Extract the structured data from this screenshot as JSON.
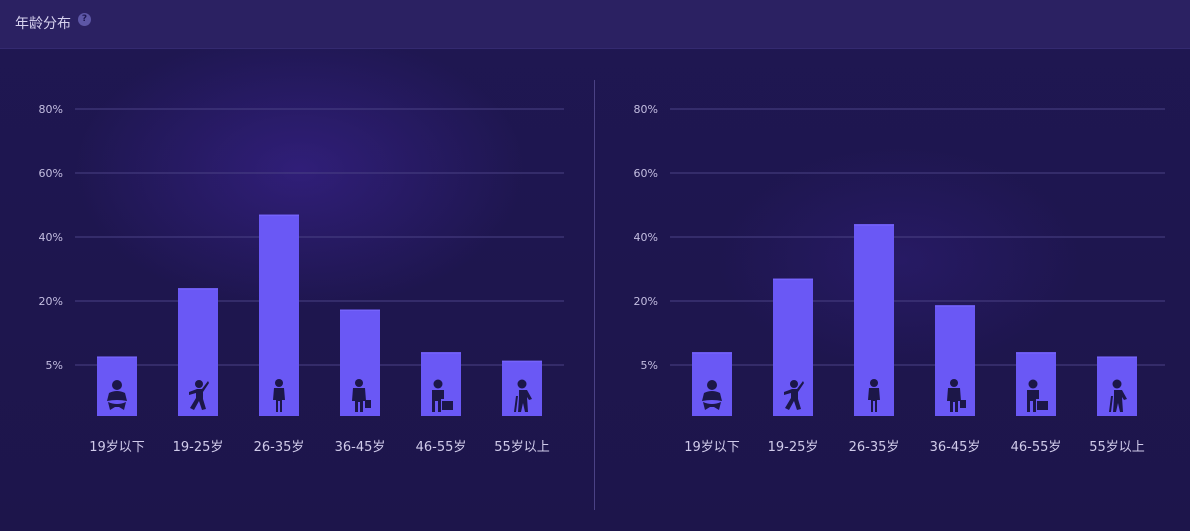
{
  "header": {
    "title": "年龄分布",
    "help_icon": "question-icon"
  },
  "colors": {
    "bar": "#6a58f5",
    "grid": "#4a4185",
    "background": "#1e1650"
  },
  "chart_data": [
    {
      "type": "bar",
      "categories": [
        "19岁以下",
        "19-25岁",
        "26-35岁",
        "36-45岁",
        "46-55岁",
        "55岁以上"
      ],
      "icons": [
        "baby-icon",
        "child-icon",
        "young-adult-icon",
        "businessman-icon",
        "middle-aged-icon",
        "elderly-icon"
      ],
      "values": [
        7,
        24,
        47,
        18,
        8,
        6
      ],
      "yticks": [
        "5%",
        "20%",
        "40%",
        "60%",
        "80%"
      ],
      "ytick_values": [
        5,
        20,
        40,
        60,
        80
      ],
      "ylim": [
        0,
        80
      ],
      "grid": true
    },
    {
      "type": "bar",
      "categories": [
        "19岁以下",
        "19-25岁",
        "26-35岁",
        "36-45岁",
        "46-55岁",
        "55岁以上"
      ],
      "icons": [
        "baby-icon",
        "child-icon",
        "young-adult-icon",
        "businessman-icon",
        "middle-aged-icon",
        "elderly-icon"
      ],
      "values": [
        8,
        27,
        44,
        19,
        8,
        7
      ],
      "yticks": [
        "5%",
        "20%",
        "40%",
        "60%",
        "80%"
      ],
      "ytick_values": [
        5,
        20,
        40,
        60,
        80
      ],
      "ylim": [
        0,
        80
      ],
      "grid": true
    }
  ]
}
